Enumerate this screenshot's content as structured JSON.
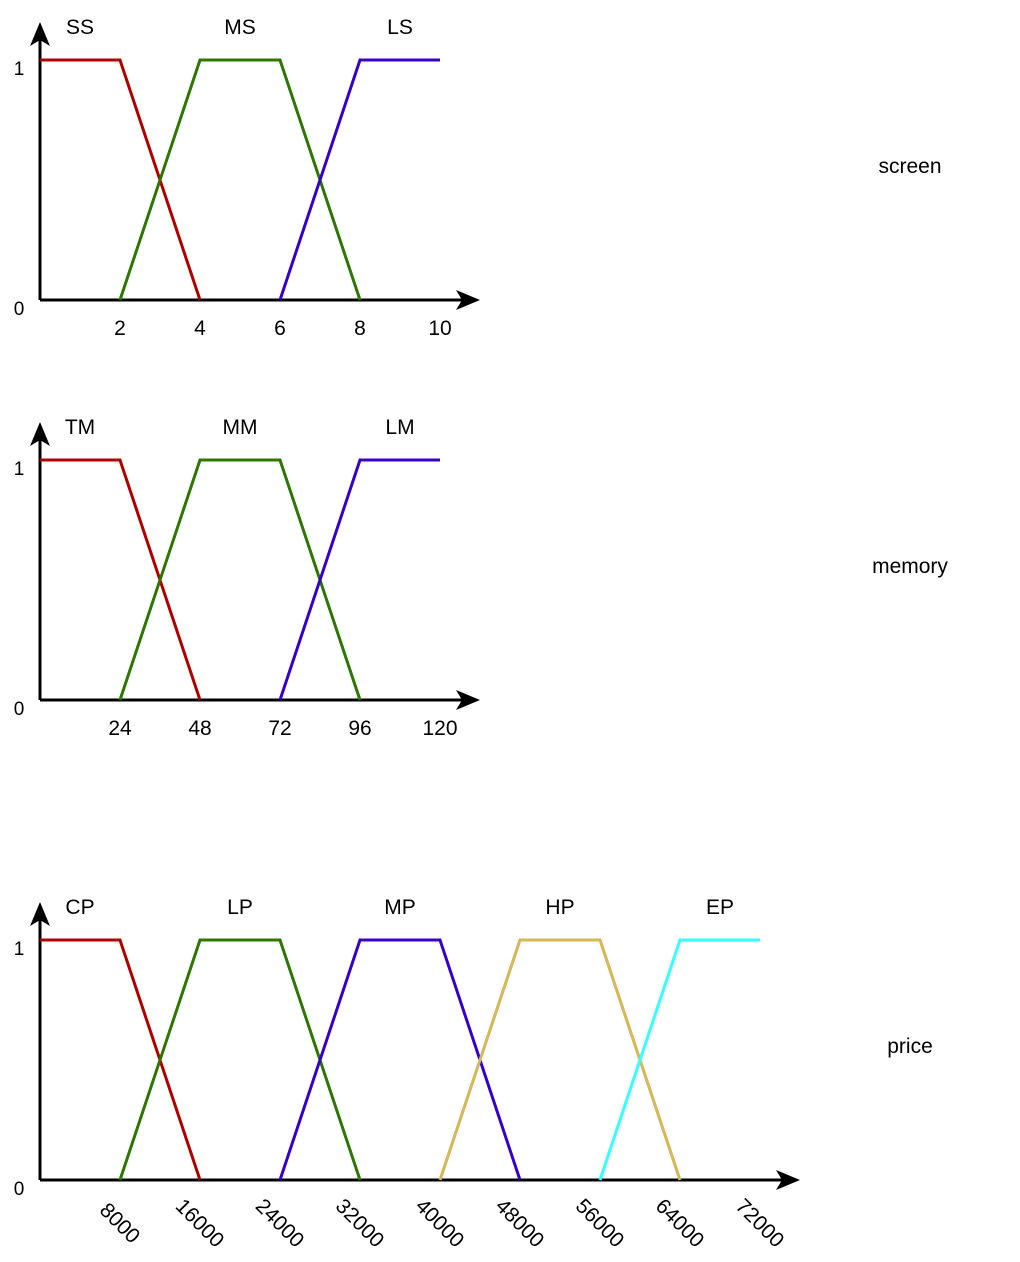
{
  "colors": {
    "axis": "#000000",
    "red": "#B20000",
    "green": "#2D7600",
    "blue": "#3700CC",
    "gold": "#D6B656",
    "cyan": "#33FFFF"
  },
  "chart_data": [
    {
      "type": "line",
      "title": "screen",
      "y_ticks": [
        "0",
        "1"
      ],
      "x_ticks": [
        "2",
        "4",
        "6",
        "8",
        "10"
      ],
      "xlim": [
        0,
        10
      ],
      "ylim": [
        0,
        1
      ],
      "grid": false,
      "legend": "labels above each curve",
      "series": [
        {
          "name": "SS",
          "color": "red",
          "x": [
            0,
            2,
            4
          ],
          "y": [
            1,
            1,
            0
          ]
        },
        {
          "name": "MS",
          "color": "green",
          "x": [
            2,
            4,
            6,
            8
          ],
          "y": [
            0,
            1,
            1,
            0
          ]
        },
        {
          "name": "LS",
          "color": "blue",
          "x": [
            6,
            8,
            10
          ],
          "y": [
            0,
            1,
            1
          ]
        }
      ]
    },
    {
      "type": "line",
      "title": "memory",
      "y_ticks": [
        "0",
        "1"
      ],
      "x_ticks": [
        "24",
        "48",
        "72",
        "96",
        "120"
      ],
      "xlim": [
        0,
        120
      ],
      "ylim": [
        0,
        1
      ],
      "grid": false,
      "legend": "labels above each curve",
      "series": [
        {
          "name": "TM",
          "color": "red",
          "x": [
            0,
            24,
            48
          ],
          "y": [
            1,
            1,
            0
          ]
        },
        {
          "name": "MM",
          "color": "green",
          "x": [
            24,
            48,
            72,
            96
          ],
          "y": [
            0,
            1,
            1,
            0
          ]
        },
        {
          "name": "LM",
          "color": "blue",
          "x": [
            72,
            96,
            120
          ],
          "y": [
            0,
            1,
            1
          ]
        }
      ]
    },
    {
      "type": "line",
      "title": "price",
      "y_ticks": [
        "0",
        "1"
      ],
      "x_ticks": [
        "8000",
        "16000",
        "24000",
        "32000",
        "40000",
        "48000",
        "56000",
        "64000",
        "72000"
      ],
      "xlim": [
        0,
        72000
      ],
      "ylim": [
        0,
        1
      ],
      "grid": false,
      "legend": "labels above each curve",
      "series": [
        {
          "name": "CP",
          "color": "red",
          "x": [
            0,
            8000,
            16000
          ],
          "y": [
            1,
            1,
            0
          ]
        },
        {
          "name": "LP",
          "color": "green",
          "x": [
            8000,
            16000,
            24000,
            32000
          ],
          "y": [
            0,
            1,
            1,
            0
          ]
        },
        {
          "name": "MP",
          "color": "blue",
          "x": [
            24000,
            32000,
            40000,
            48000
          ],
          "y": [
            0,
            1,
            1,
            0
          ]
        },
        {
          "name": "HP",
          "color": "gold",
          "x": [
            40000,
            48000,
            56000,
            64000
          ],
          "y": [
            0,
            1,
            1,
            0
          ]
        },
        {
          "name": "EP",
          "color": "cyan",
          "x": [
            56000,
            64000,
            72000
          ],
          "y": [
            0,
            1,
            1
          ]
        }
      ]
    }
  ]
}
